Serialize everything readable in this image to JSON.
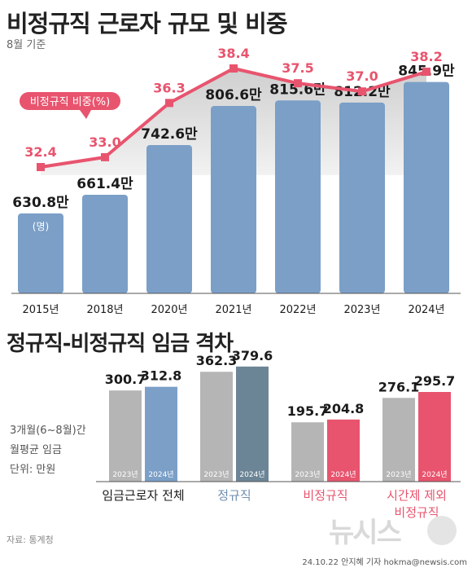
{
  "header": {
    "title": "비정규직 근로자 규모 및 비중",
    "note": "8월 기준"
  },
  "chart_data": [
    {
      "type": "bar",
      "categories": [
        "2015년",
        "2018년",
        "2020년",
        "2021년",
        "2022년",
        "2023년",
        "2024년"
      ],
      "series": [
        {
          "values": [
            630.8,
            661.4,
            742.6,
            806.6,
            815.6,
            812.2,
            845.9
          ],
          "labels": [
            "630.8만",
            "661.4만",
            "742.6만",
            "806.6만",
            "815.6만",
            "812.2만",
            "845.9만"
          ],
          "unit_note": "(명)",
          "color": "#7b9fc7"
        },
        {
          "name": "비정규직 비중(%)",
          "type": "line",
          "values": [
            32.4,
            33.0,
            36.3,
            38.4,
            37.5,
            37.0,
            38.2
          ],
          "labels": [
            "32.4",
            "33.0",
            "36.3",
            "38.4",
            "37.5",
            "37.0",
            "38.2"
          ],
          "color": "#e8546e"
        }
      ]
    },
    {
      "type": "bar",
      "title": "정규직-비정규직 임금 격차",
      "note_lines": [
        "3개월(6~8월)간",
        "월평균 임금",
        "단위: 만원"
      ],
      "categories": [
        "임금근로자 전체",
        "정규직",
        "비정규직",
        "시간제 제외\n비정규직"
      ],
      "category_lines": [
        [
          "임금근로자 전체"
        ],
        [
          "정규직"
        ],
        [
          "비정규직"
        ],
        [
          "시간제 제외",
          "비정규직"
        ]
      ],
      "category_colors": [
        "#1b1b1b",
        "#6f8fae",
        "#e8546e",
        "#e8546e"
      ],
      "series": [
        {
          "name": "2023년",
          "values": [
            300.7,
            362.3,
            195.7,
            276.1
          ],
          "labels": [
            "300.7",
            "362.3",
            "195.7",
            "276.1"
          ],
          "color": "#b5b5b5"
        },
        {
          "name": "2024년",
          "values": [
            312.8,
            379.6,
            204.8,
            295.7
          ],
          "labels": [
            "312.8",
            "379.6",
            "204.8",
            "295.7"
          ],
          "colors": [
            "#7b9fc7",
            "#6c8596",
            "#e8546e",
            "#e8546e"
          ]
        }
      ]
    }
  ],
  "footer": {
    "source": "자료: 통계청",
    "credit": "24.10.22 안지혜 기자 hokma@newsis.com",
    "logo": "뉴시스"
  }
}
